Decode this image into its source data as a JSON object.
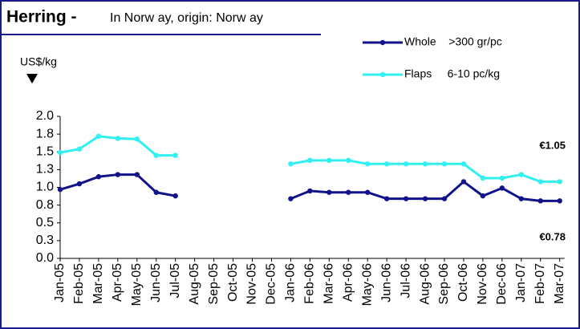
{
  "chart_data": {
    "type": "line",
    "title": "Herring -",
    "subtitle": "In Norw ay, origin: Norw ay",
    "y_label": "US$/kg",
    "annotations": [
      "€1.05",
      "€0.78"
    ],
    "categories": [
      "Jan-05",
      "Feb-05",
      "Mar-05",
      "Apr-05",
      "May-05",
      "Jun-05",
      "Jul-05",
      "Aug-05",
      "Sep-05",
      "Oct-05",
      "Nov-05",
      "Dec-05",
      "Jan-06",
      "Feb-06",
      "Mar-06",
      "Apr-06",
      "May-06",
      "Jun-06",
      "Jul-06",
      "Aug-06",
      "Sep-06",
      "Oct-06",
      "Nov-06",
      "Dec-06",
      "Jan-07",
      "Feb-07",
      "Mar-07"
    ],
    "series": [
      {
        "name": "Whole    >300 gr/pc",
        "color": "#12128a",
        "values": [
          0.97,
          1.05,
          1.15,
          1.18,
          1.18,
          0.93,
          0.88,
          null,
          null,
          null,
          null,
          null,
          0.84,
          0.95,
          0.93,
          0.93,
          0.93,
          0.84,
          0.84,
          0.84,
          0.84,
          1.08,
          0.88,
          0.99,
          0.84,
          0.81,
          0.81
        ]
      },
      {
        "name": "Flaps     6-10 pc/kg",
        "color": "#33f0f0",
        "values": [
          1.49,
          1.54,
          1.72,
          1.69,
          1.68,
          1.45,
          1.45,
          null,
          null,
          null,
          null,
          null,
          1.33,
          1.38,
          1.38,
          1.38,
          1.33,
          1.33,
          1.33,
          1.33,
          1.33,
          1.33,
          1.13,
          1.13,
          1.18,
          1.08,
          1.08
        ]
      }
    ],
    "ylim": [
      0,
      2
    ],
    "yticks": [
      {
        "value": 0,
        "label": "0.0"
      },
      {
        "value": 0.25,
        "label": "0.3"
      },
      0.5,
      {
        "value": 0.75,
        "label": "0.8"
      },
      {
        "value": 1,
        "label": "1.0"
      },
      {
        "value": 1.25,
        "label": "1.3"
      },
      1.5,
      {
        "value": 1.75,
        "label": "1.8"
      },
      {
        "value": 2,
        "label": "2.0"
      }
    ]
  }
}
